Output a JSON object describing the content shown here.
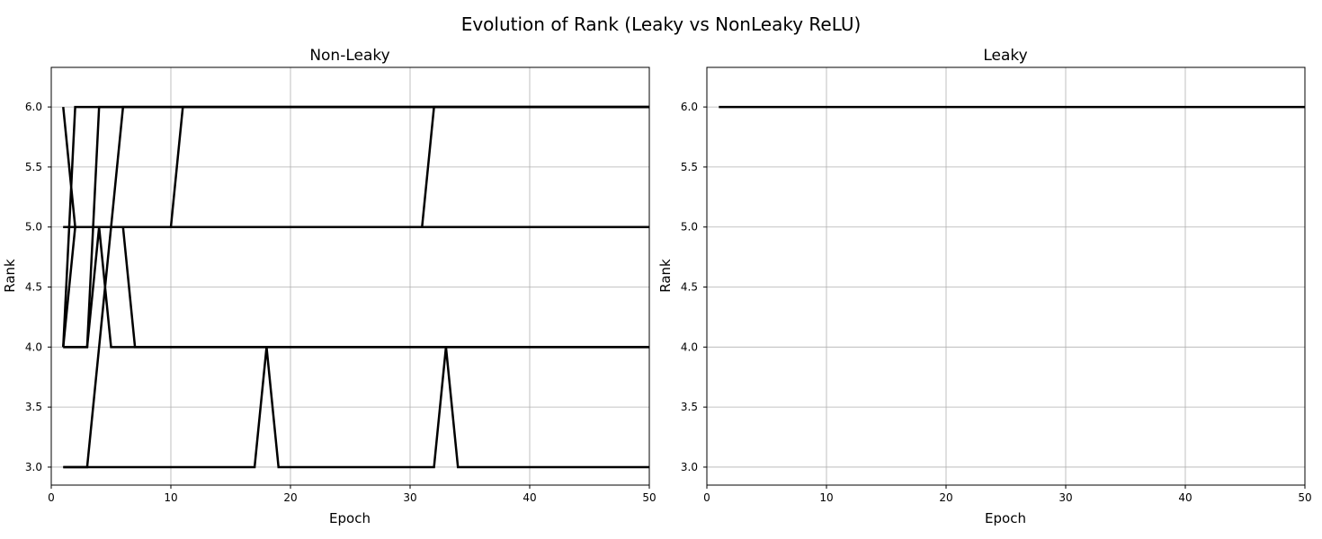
{
  "figure": {
    "title": "Evolution of Rank (Leaky vs NonLeaky ReLU)"
  },
  "chart_data": [
    {
      "type": "line",
      "title": "Non-Leaky",
      "xlabel": "Epoch",
      "ylabel": "Rank",
      "xlim": [
        0,
        50
      ],
      "ylim": [
        2.85,
        6.33
      ],
      "xticks": [
        0,
        10,
        20,
        30,
        40,
        50
      ],
      "yticks": [
        3.0,
        3.5,
        4.0,
        4.5,
        5.0,
        5.5,
        6.0
      ],
      "grid": true,
      "line_color": "#000000",
      "series": [
        {
          "points": [
            [
              1,
              6
            ],
            [
              2,
              5
            ],
            [
              50,
              5
            ]
          ]
        },
        {
          "points": [
            [
              1,
              5
            ],
            [
              10,
              5
            ],
            [
              11,
              6
            ],
            [
              50,
              6
            ]
          ]
        },
        {
          "points": [
            [
              1,
              5
            ],
            [
              31,
              5
            ],
            [
              32,
              6
            ],
            [
              50,
              6
            ]
          ]
        },
        {
          "points": [
            [
              1,
              4
            ],
            [
              2,
              6
            ],
            [
              50,
              6
            ]
          ]
        },
        {
          "points": [
            [
              1,
              4
            ],
            [
              3,
              4
            ],
            [
              4,
              6
            ],
            [
              50,
              6
            ]
          ]
        },
        {
          "points": [
            [
              1,
              4
            ],
            [
              3,
              4
            ],
            [
              4,
              5
            ],
            [
              5,
              4
            ],
            [
              50,
              4
            ]
          ]
        },
        {
          "points": [
            [
              1,
              4
            ],
            [
              2,
              5
            ],
            [
              6,
              5
            ],
            [
              7,
              4
            ],
            [
              50,
              4
            ]
          ]
        },
        {
          "points": [
            [
              1,
              3
            ],
            [
              3,
              3
            ],
            [
              6,
              6
            ],
            [
              50,
              6
            ]
          ]
        },
        {
          "points": [
            [
              1,
              3
            ],
            [
              17,
              3
            ],
            [
              18,
              4
            ],
            [
              19,
              3
            ],
            [
              32,
              3
            ],
            [
              33,
              4
            ],
            [
              34,
              3
            ],
            [
              50,
              3
            ]
          ]
        }
      ]
    },
    {
      "type": "line",
      "title": "Leaky",
      "xlabel": "Epoch",
      "ylabel": "Rank",
      "xlim": [
        0,
        50
      ],
      "ylim": [
        2.85,
        6.33
      ],
      "xticks": [
        0,
        10,
        20,
        30,
        40,
        50
      ],
      "yticks": [
        3.0,
        3.5,
        4.0,
        4.5,
        5.0,
        5.5,
        6.0
      ],
      "grid": true,
      "line_color": "#000000",
      "series": [
        {
          "points": [
            [
              1,
              6
            ],
            [
              50,
              6
            ]
          ]
        }
      ]
    }
  ]
}
